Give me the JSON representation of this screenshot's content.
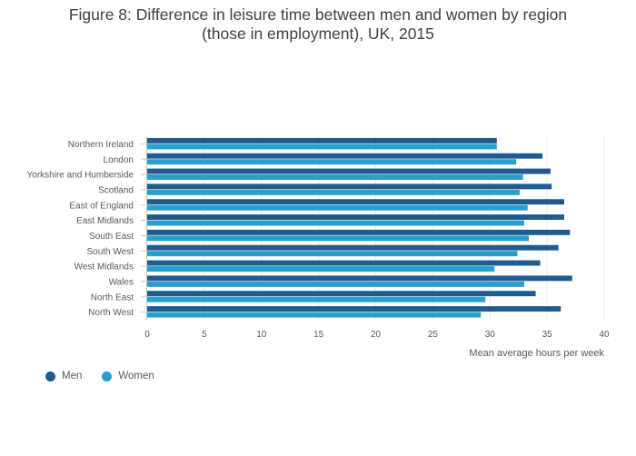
{
  "chart_data": {
    "type": "bar",
    "orientation": "horizontal",
    "title_lines": [
      "Figure 8: Difference in leisure time between men and women by region",
      "(those in employment), UK, 2015"
    ],
    "categories": [
      "Northern Ireland",
      "London",
      "Yorkshire and Humberside",
      "Scotland",
      "East of England",
      "East Midlands",
      "South East",
      "South West",
      "West Midlands",
      "Wales",
      "North East",
      "North West"
    ],
    "series": [
      {
        "name": "Men",
        "color": "#1f5b8e",
        "values": [
          30.6,
          34.6,
          35.3,
          35.4,
          36.5,
          36.5,
          37.0,
          36.0,
          34.4,
          37.2,
          34.0,
          36.2
        ]
      },
      {
        "name": "Women",
        "color": "#299fcd",
        "values": [
          30.6,
          32.3,
          32.9,
          32.6,
          33.3,
          33.0,
          33.4,
          32.4,
          30.4,
          33.0,
          29.6,
          29.2
        ]
      }
    ],
    "xlabel": "Mean average hours per week",
    "ylabel": "",
    "xlim": [
      0,
      40
    ],
    "xticks": [
      0,
      5,
      10,
      15,
      20,
      25,
      30,
      35,
      40
    ],
    "grid": true,
    "legend_position": "bottom-left"
  }
}
